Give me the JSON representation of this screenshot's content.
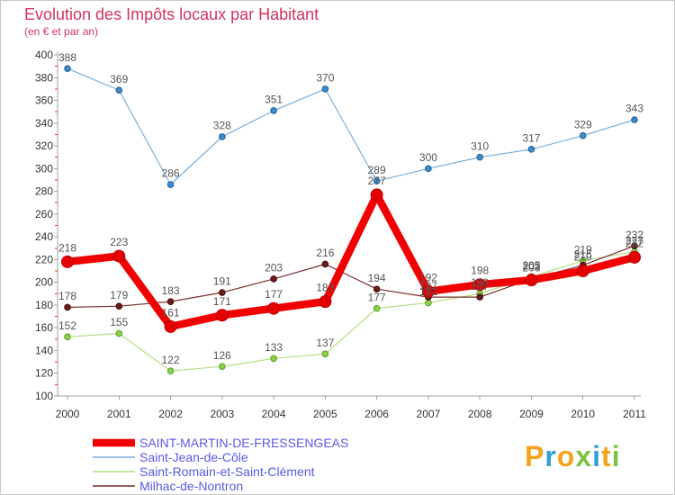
{
  "chart_data": {
    "type": "line",
    "title": "Evolution des Impôts locaux par Habitant",
    "subtitle": "(en € et par an)",
    "categories": [
      "2000",
      "2001",
      "2002",
      "2003",
      "2004",
      "2005",
      "2006",
      "2007",
      "2008",
      "2009",
      "2010",
      "2011"
    ],
    "ylim": [
      100,
      400
    ],
    "yticks": [
      100,
      120,
      140,
      160,
      180,
      200,
      220,
      240,
      260,
      280,
      300,
      320,
      340,
      360,
      380,
      400
    ],
    "grid": false,
    "legend_position": "bottom-left",
    "series": [
      {
        "name": "SAINT-MARTIN-DE-FRESSENGEAS",
        "color": "#f00000",
        "point_color": "#e40000",
        "point_stroke": "#b80000",
        "values": [
          218,
          223,
          161,
          171,
          177,
          183,
          277,
          192,
          198,
          202,
          210,
          222
        ]
      },
      {
        "name": "Saint-Jean-de-Côle",
        "color": "#7aaedb",
        "point_color": "#3f8ccb",
        "point_stroke": "#235d8e",
        "values": [
          388,
          369,
          286,
          328,
          351,
          370,
          289,
          300,
          310,
          317,
          329,
          343
        ]
      },
      {
        "name": "Saint-Romain-et-Saint-Clément",
        "color": "#b3de84",
        "point_color": "#8fd14b",
        "point_stroke": "#5d9a28",
        "values": [
          152,
          155,
          122,
          126,
          133,
          137,
          177,
          182,
          190,
          205,
          219,
          227
        ]
      },
      {
        "name": "Milhac-de-Nontron",
        "color": "#7d2f2f",
        "point_color": "#6e1b1b",
        "point_stroke": "#3f0a0a",
        "values": [
          178,
          179,
          183,
          191,
          203,
          216,
          194,
          187,
          187,
          203,
          215,
          232
        ]
      }
    ]
  },
  "logo": {
    "text": "Proxiti",
    "letter_colors": [
      "#f6a21c",
      "#2f9fd8",
      "#f6a21c",
      "#7cc242",
      "#2f9fd8",
      "#f6a21c",
      "#7cc242"
    ]
  }
}
